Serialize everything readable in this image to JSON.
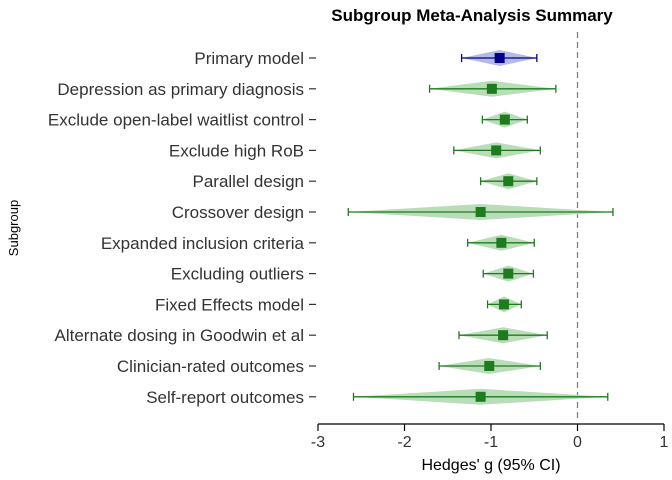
{
  "chart_data": {
    "type": "forest",
    "title": "Subgroup Meta-Analysis Summary",
    "xlabel": "Hedges' g (95% CI)",
    "ylabel": "Subgroup",
    "xlim": [
      -3,
      1
    ],
    "xticks": [
      -3,
      -2,
      -1,
      0,
      1
    ],
    "reference_line": 0,
    "rows": [
      {
        "label": "Primary model",
        "estimate": -0.9,
        "ci_low": -1.34,
        "ci_high": -0.47,
        "color": "#00008b",
        "fill": "#b4b9e6"
      },
      {
        "label": "Depression as primary diagnosis",
        "estimate": -0.99,
        "ci_low": -1.71,
        "ci_high": -0.25,
        "color": "#1e7b1e",
        "fill": "#b8ddb8"
      },
      {
        "label": "Exclude open-label waitlist control",
        "estimate": -0.84,
        "ci_low": -1.1,
        "ci_high": -0.58,
        "color": "#1e7b1e",
        "fill": "#b8ddb8"
      },
      {
        "label": "Exclude high RoB",
        "estimate": -0.94,
        "ci_low": -1.43,
        "ci_high": -0.43,
        "color": "#1e7b1e",
        "fill": "#b8ddb8"
      },
      {
        "label": "Parallel design",
        "estimate": -0.8,
        "ci_low": -1.12,
        "ci_high": -0.47,
        "color": "#1e7b1e",
        "fill": "#b8ddb8"
      },
      {
        "label": "Crossover design",
        "estimate": -1.12,
        "ci_low": -2.65,
        "ci_high": 0.41,
        "color": "#1e7b1e",
        "fill": "#b8ddb8"
      },
      {
        "label": "Expanded inclusion criteria",
        "estimate": -0.88,
        "ci_low": -1.27,
        "ci_high": -0.5,
        "color": "#1e7b1e",
        "fill": "#b8ddb8"
      },
      {
        "label": "Excluding outliers",
        "estimate": -0.8,
        "ci_low": -1.09,
        "ci_high": -0.51,
        "color": "#1e7b1e",
        "fill": "#b8ddb8"
      },
      {
        "label": "Fixed Effects model",
        "estimate": -0.85,
        "ci_low": -1.04,
        "ci_high": -0.65,
        "color": "#1e7b1e",
        "fill": "#b8ddb8"
      },
      {
        "label": "Alternate dosing in Goodwin et al",
        "estimate": -0.86,
        "ci_low": -1.37,
        "ci_high": -0.35,
        "color": "#1e7b1e",
        "fill": "#b8ddb8"
      },
      {
        "label": "Clinician-rated outcomes",
        "estimate": -1.02,
        "ci_low": -1.6,
        "ci_high": -0.43,
        "color": "#1e7b1e",
        "fill": "#b8ddb8"
      },
      {
        "label": "Self-report outcomes",
        "estimate": -1.12,
        "ci_low": -2.59,
        "ci_high": 0.35,
        "color": "#1e7b1e",
        "fill": "#b8ddb8"
      }
    ]
  }
}
